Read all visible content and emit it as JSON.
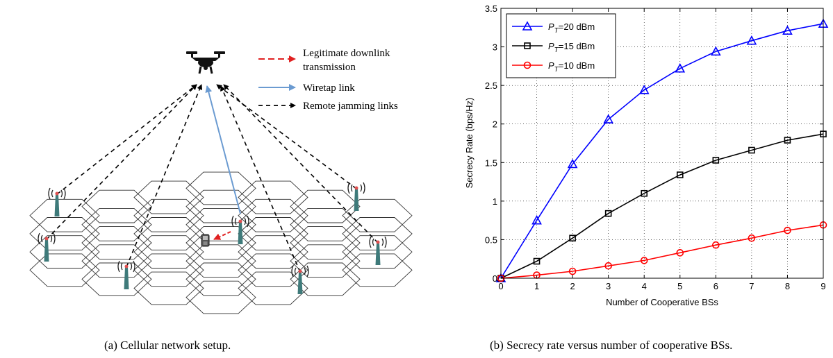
{
  "figure_a": {
    "caption": "(a) Cellular network setup.",
    "legend": [
      {
        "label_line1": "Legitimate downlink",
        "label_line2": "transmission",
        "color": "#e02020",
        "style": "dashed"
      },
      {
        "label_line1": "Wiretap link",
        "label_line2": "",
        "color": "#6b9bd1",
        "style": "solid"
      },
      {
        "label_line1": "Remote jamming links",
        "label_line2": "",
        "color": "#000000",
        "style": "dashed"
      }
    ],
    "icons": [
      "drone-icon",
      "base-station-icon",
      "mobile-phone-icon"
    ]
  },
  "figure_b": {
    "caption": "(b) Secrecy rate versus number of cooperative BSs."
  },
  "chart_data": {
    "type": "line",
    "title": "",
    "xlabel": "Number of Cooperative BSs",
    "ylabel": "Secrecy Rate (bps/Hz)",
    "xlim": [
      0,
      9
    ],
    "ylim": [
      0,
      3.5
    ],
    "xticks": [
      "0",
      "1",
      "2",
      "3",
      "4",
      "5",
      "6",
      "7",
      "8",
      "9"
    ],
    "yticks": [
      "0",
      "0.5",
      "1",
      "1.5",
      "2",
      "2.5",
      "3",
      "3.5"
    ],
    "grid": true,
    "legend_position": "top-left",
    "x": [
      0,
      1,
      2,
      3,
      4,
      5,
      6,
      7,
      8,
      9
    ],
    "series": [
      {
        "name": "P_T=20 dBm",
        "legend_main": "P",
        "legend_sub": "T",
        "legend_rest": "=20 dBm",
        "color": "#0000ff",
        "marker": "triangle",
        "values": [
          0,
          0.75,
          1.48,
          2.06,
          2.44,
          2.72,
          2.94,
          3.08,
          3.21,
          3.3
        ]
      },
      {
        "name": "P_T=15 dBm",
        "legend_main": "P",
        "legend_sub": "T",
        "legend_rest": "=15 dBm",
        "color": "#000000",
        "marker": "square",
        "values": [
          0,
          0.22,
          0.52,
          0.84,
          1.1,
          1.34,
          1.53,
          1.66,
          1.79,
          1.87
        ]
      },
      {
        "name": "P_T=10 dBm",
        "legend_main": "P",
        "legend_sub": "T",
        "legend_rest": "=10 dBm",
        "color": "#ff0000",
        "marker": "circle",
        "values": [
          0,
          0.04,
          0.09,
          0.16,
          0.23,
          0.33,
          0.43,
          0.52,
          0.62,
          0.69
        ]
      }
    ]
  }
}
